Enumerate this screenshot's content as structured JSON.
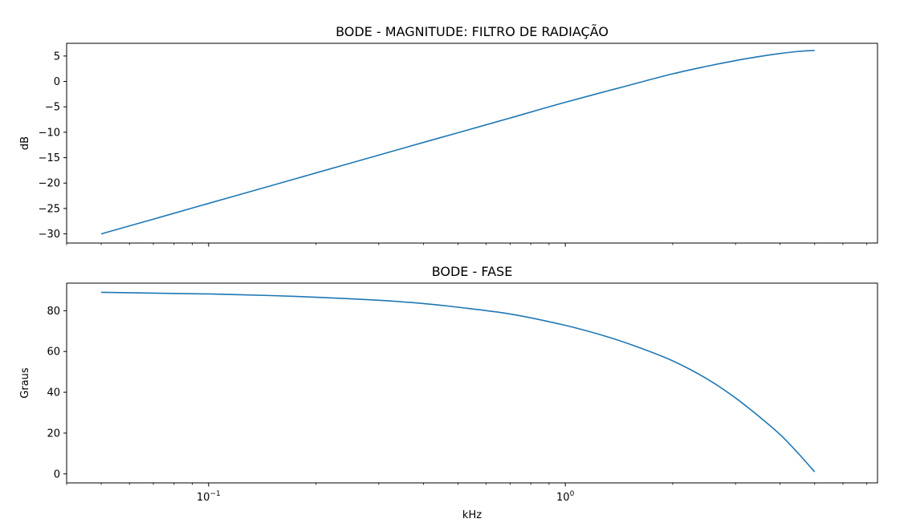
{
  "chart_data": [
    {
      "type": "line",
      "title": "BODE - MAGNITUDE: FILTRO DE RADIAÇÃO",
      "xlabel": "",
      "ylabel": "dB",
      "xscale": "log",
      "xlim": [
        0.04,
        7.5
      ],
      "ylim": [
        -31.8,
        7.5
      ],
      "x_major_ticks": [
        0.1,
        1
      ],
      "x_tick_labels": [],
      "y_ticks": [
        5,
        0,
        -5,
        -10,
        -15,
        -20,
        -25,
        -30
      ],
      "y_tick_labels": [
        "5",
        "0",
        "−5",
        "−10",
        "−15",
        "−20",
        "−25",
        "−30"
      ],
      "grid": false,
      "line_color": "#1f77b4",
      "series": [
        {
          "x": [
            0.05,
            0.07,
            0.1,
            0.15,
            0.2,
            0.3,
            0.4,
            0.5,
            0.7,
            1.0,
            1.5,
            2.0,
            2.5,
            3.0,
            3.5,
            4.0,
            4.5,
            5.0
          ],
          "values": [
            -30.0,
            -27.1,
            -24.0,
            -20.5,
            -18.0,
            -14.5,
            -12.0,
            -10.1,
            -7.2,
            -4.1,
            -0.8,
            1.5,
            3.0,
            4.1,
            4.9,
            5.5,
            5.9,
            6.1
          ]
        }
      ]
    },
    {
      "type": "line",
      "title": "BODE - FASE",
      "xlabel": "kHz",
      "ylabel": "Graus",
      "xscale": "log",
      "xlim": [
        0.04,
        7.5
      ],
      "ylim": [
        -4.4,
        93.5
      ],
      "x_major_ticks": [
        0.1,
        1
      ],
      "x_tick_labels": [
        {
          "base": "10",
          "exp": "−1"
        },
        {
          "base": "10",
          "exp": "0"
        }
      ],
      "y_ticks": [
        0,
        20,
        40,
        60,
        80
      ],
      "y_tick_labels": [
        "0",
        "20",
        "40",
        "60",
        "80"
      ],
      "grid": false,
      "line_color": "#1f77b4",
      "series": [
        {
          "x": [
            0.05,
            0.07,
            0.1,
            0.15,
            0.2,
            0.3,
            0.4,
            0.5,
            0.7,
            1.0,
            1.3,
            1.6,
            2.0,
            2.5,
            3.0,
            3.5,
            4.0,
            4.5,
            5.0
          ],
          "values": [
            89.0,
            88.6,
            88.2,
            87.4,
            86.6,
            85.1,
            83.5,
            81.7,
            78.4,
            72.8,
            67.4,
            62.1,
            55.4,
            46.5,
            37.2,
            28.0,
            19.3,
            10.0,
            1.0
          ]
        }
      ]
    }
  ]
}
